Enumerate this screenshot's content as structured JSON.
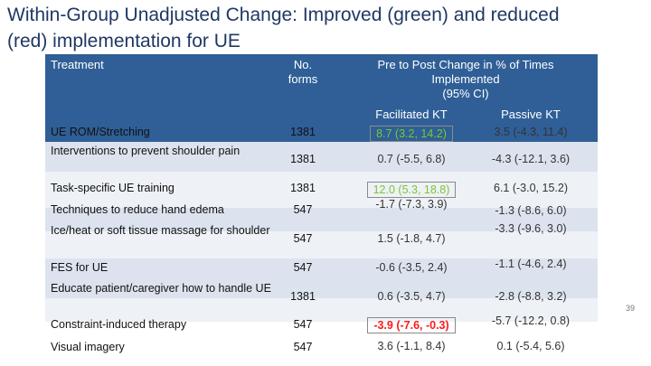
{
  "title_line1": "Within-Group Unadjusted Change: Improved (green) and reduced",
  "title_line2": "(red) implementation for UE",
  "header": {
    "treatment": "Treatment",
    "forms_line1": "No.",
    "forms_line2": "forms",
    "change_line1": "Pre to Post Change in % of Times",
    "change_line2": "Implemented",
    "change_line3": "(95% CI)",
    "facilitated": "Facilitated KT",
    "passive": "Passive KT"
  },
  "rows": [
    {
      "treatment": "UE ROM/Stretching",
      "forms": "1381",
      "facilitated": "8.7 (3.2, 14.2)",
      "passive": "3.5 (-4.3, 11.4)"
    },
    {
      "treatment": "Interventions to prevent shoulder pain",
      "forms": "1381",
      "facilitated": "0.7 (-5.5, 6.8)",
      "passive": "-4.3 (-12.1, 3.6)"
    },
    {
      "treatment": "Task-specific UE training",
      "forms": "1381",
      "facilitated": "12.0 (5.3, 18.8)",
      "passive": "6.1 (-3.0, 15.2)"
    },
    {
      "treatment": "Techniques to reduce hand edema",
      "forms": "547",
      "facilitated": "-1.7 (-7.3, 3.9)",
      "passive": "-1.3 (-8.6, 6.0)"
    },
    {
      "treatment": "Ice/heat or soft tissue massage for shoulder",
      "forms": "547",
      "facilitated": "1.5 (-1.8, 4.7)",
      "passive": "-3.3 (-9.6, 3.0)"
    },
    {
      "treatment": "FES for UE",
      "forms": "547",
      "facilitated": "-0.6 (-3.5, 2.4)",
      "passive": "-1.1 (-4.6, 2.4)"
    },
    {
      "treatment": "Educate patient/caregiver how to handle UE",
      "forms": "1381",
      "facilitated": "0.6 (-3.5, 4.7)",
      "passive": "-2.8 (-8.8, 3.2)"
    },
    {
      "treatment": "Constraint-induced therapy",
      "forms": "547",
      "facilitated": "-3.9 (-7.6, -0.3)",
      "passive": "-5.7 (-12.2, 0.8)"
    },
    {
      "treatment": "Visual imagery",
      "forms": "547",
      "facilitated": "3.6 (-1.1, 8.4)",
      "passive": "0.1 (-5.4, 5.6)"
    }
  ],
  "colors": {
    "header_bg": "#2f5f96",
    "title": "#1f3864",
    "improved": "#78c832",
    "reduced": "#ff1a1a"
  },
  "page_number": "39"
}
